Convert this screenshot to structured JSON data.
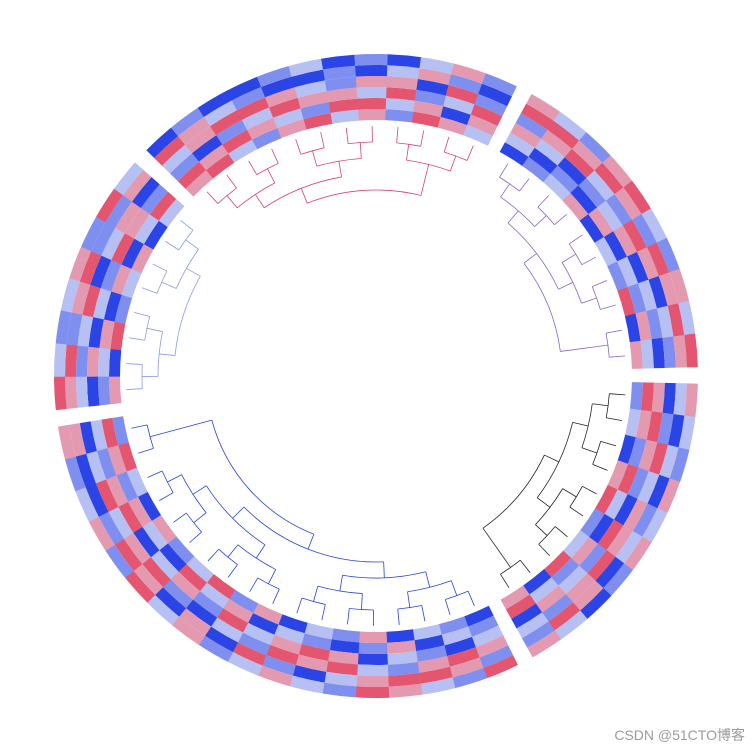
{
  "chart_data": {
    "type": "circular_heatmap",
    "vlim": [
      -2,
      2
    ],
    "color_scale": [
      "#2b44e6",
      "#7f8ff0",
      "#b6c0f3",
      "#e39ab0",
      "#e4566f"
    ],
    "watermark": "CSDN @51CTO博客",
    "sectors": [
      {
        "color": "#d6446e",
        "matrix": [
          [
            1,
            2,
            -1,
            0,
            2,
            -2
          ],
          [
            2,
            1,
            -2,
            1,
            1,
            -1
          ],
          [
            0,
            2,
            -1,
            2,
            0,
            -2
          ],
          [
            -1,
            1,
            0,
            2,
            -1,
            -2
          ],
          [
            1,
            0,
            2,
            1,
            -2,
            -1
          ],
          [
            2,
            -1,
            1,
            0,
            -2,
            0
          ],
          [
            0,
            2,
            1,
            -1,
            -1,
            -2
          ],
          [
            1,
            2,
            0,
            1,
            -2,
            -1
          ],
          [
            -1,
            0,
            2,
            1,
            0,
            -2
          ],
          [
            2,
            1,
            -1,
            -2,
            1,
            0
          ],
          [
            1,
            -2,
            0,
            2,
            -1,
            1
          ],
          [
            0,
            1,
            2,
            -1,
            -2,
            -1
          ]
        ]
      },
      {
        "color": "#8a66c4",
        "matrix": [
          [
            -2,
            0,
            1,
            -1,
            2,
            1
          ],
          [
            -1,
            -2,
            0,
            1,
            2,
            0
          ],
          [
            0,
            -1,
            -2,
            2,
            1,
            -1
          ],
          [
            1,
            -2,
            -1,
            0,
            2,
            1
          ],
          [
            -2,
            1,
            0,
            -1,
            1,
            2
          ],
          [
            0,
            -2,
            1,
            2,
            -1,
            0
          ],
          [
            -1,
            0,
            -2,
            1,
            2,
            -1
          ],
          [
            2,
            -1,
            0,
            -2,
            1,
            1
          ],
          [
            -2,
            1,
            -1,
            0,
            2,
            0
          ],
          [
            1,
            0,
            -2,
            -1,
            1,
            2
          ]
        ]
      },
      {
        "color": "#222222",
        "matrix": [
          [
            -1,
            2,
            1,
            -2,
            0,
            1
          ],
          [
            0,
            1,
            2,
            -1,
            -2,
            0
          ],
          [
            -2,
            -1,
            1,
            2,
            0,
            -1
          ],
          [
            1,
            2,
            -1,
            0,
            -2,
            1
          ],
          [
            2,
            0,
            -2,
            1,
            -1,
            0
          ],
          [
            -1,
            -2,
            2,
            1,
            0,
            1
          ],
          [
            0,
            1,
            -1,
            2,
            -2,
            -1
          ],
          [
            2,
            -1,
            0,
            1,
            1,
            -2
          ],
          [
            -2,
            0,
            1,
            -1,
            2,
            0
          ],
          [
            1,
            2,
            -2,
            0,
            -1,
            1
          ]
        ]
      },
      {
        "color": "#2844d6",
        "matrix": [
          [
            -2,
            -1,
            0,
            1,
            -1,
            2
          ],
          [
            -1,
            0,
            -2,
            2,
            1,
            -1
          ],
          [
            0,
            -2,
            -1,
            1,
            2,
            0
          ],
          [
            -2,
            1,
            0,
            -1,
            2,
            1
          ],
          [
            1,
            -1,
            -2,
            0,
            1,
            2
          ],
          [
            -1,
            -2,
            1,
            2,
            0,
            -1
          ],
          [
            0,
            -1,
            2,
            1,
            -2,
            0
          ],
          [
            -2,
            0,
            1,
            2,
            -1,
            1
          ],
          [
            1,
            -2,
            0,
            -1,
            2,
            0
          ],
          [
            -1,
            1,
            2,
            0,
            -2,
            -1
          ],
          [
            2,
            0,
            -1,
            -2,
            1,
            1
          ],
          [
            0,
            2,
            1,
            -1,
            -2,
            0
          ],
          [
            -1,
            -2,
            0,
            2,
            1,
            2
          ],
          [
            1,
            0,
            -2,
            1,
            2,
            -1
          ],
          [
            -2,
            1,
            2,
            0,
            -1,
            1
          ],
          [
            0,
            -1,
            1,
            2,
            -2,
            0
          ],
          [
            2,
            1,
            -1,
            0,
            -2,
            -1
          ],
          [
            -1,
            2,
            0,
            -2,
            1,
            1
          ]
        ]
      },
      {
        "color": "#8a9ae6",
        "matrix": [
          [
            1,
            -1,
            -2,
            0,
            1,
            2
          ],
          [
            -2,
            0,
            1,
            -1,
            2,
            0
          ],
          [
            2,
            1,
            -2,
            0,
            -1,
            -1
          ],
          [
            -1,
            -2,
            0,
            2,
            1,
            0
          ],
          [
            0,
            1,
            -1,
            -2,
            2,
            1
          ],
          [
            1,
            -2,
            2,
            0,
            -1,
            -1
          ],
          [
            -2,
            0,
            1,
            1,
            -1,
            2
          ],
          [
            0,
            2,
            -1,
            -2,
            1,
            0
          ]
        ]
      }
    ]
  }
}
